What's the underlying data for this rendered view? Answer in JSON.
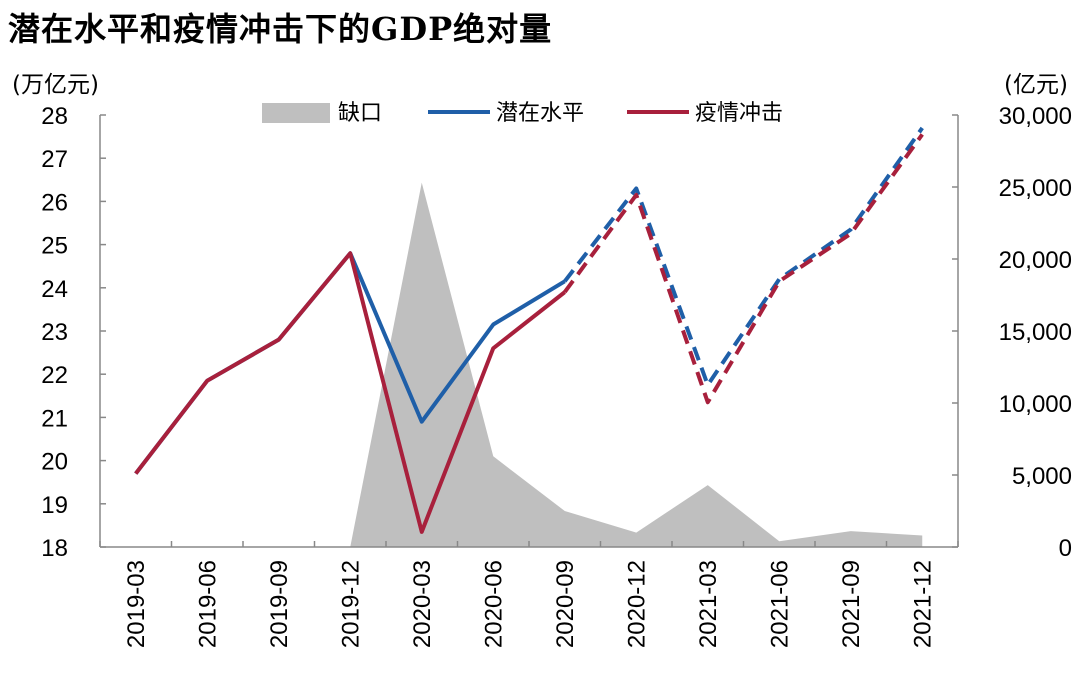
{
  "chart_data": {
    "type": "line",
    "title": "潜在水平和疫情冲击下的GDP绝对量",
    "left_unit": "(万亿元)",
    "right_unit": "(亿元)",
    "categories": [
      "2019-03",
      "2019-06",
      "2019-09",
      "2019-12",
      "2020-03",
      "2020-06",
      "2020-09",
      "2020-12",
      "2021-03",
      "2021-06",
      "2021-09",
      "2021-12"
    ],
    "left_axis": {
      "min": 18,
      "max": 28,
      "step": 1,
      "tick_labels": [
        "18",
        "19",
        "20",
        "21",
        "22",
        "23",
        "24",
        "25",
        "26",
        "27",
        "28"
      ]
    },
    "right_axis": {
      "min": 0,
      "max": 30000,
      "step": 5000,
      "tick_labels": [
        "0",
        "5,000",
        "10,000",
        "15,000",
        "20,000",
        "25,000",
        "30,000"
      ]
    },
    "series": [
      {
        "name": "缺口",
        "kind": "area",
        "axis": "right",
        "color": "#bfbfbf",
        "values": [
          0,
          0,
          0,
          0,
          25300,
          6300,
          2500,
          1000,
          4300,
          400,
          1100,
          800
        ]
      },
      {
        "name": "潜在水平",
        "kind": "line",
        "axis": "left",
        "color": "#1f5fa8",
        "values": [
          19.7,
          21.85,
          22.8,
          24.8,
          20.9,
          23.15,
          24.15,
          26.3,
          21.75,
          24.2,
          25.35,
          27.7
        ],
        "dashed_from_index": 6
      },
      {
        "name": "疫情冲击",
        "kind": "line",
        "axis": "left",
        "color": "#a8203c",
        "values": [
          19.7,
          21.85,
          22.8,
          24.8,
          18.35,
          22.6,
          23.9,
          26.15,
          21.35,
          24.15,
          25.25,
          27.55
        ],
        "dashed_from_index": 6
      }
    ],
    "legend_position": "top"
  }
}
